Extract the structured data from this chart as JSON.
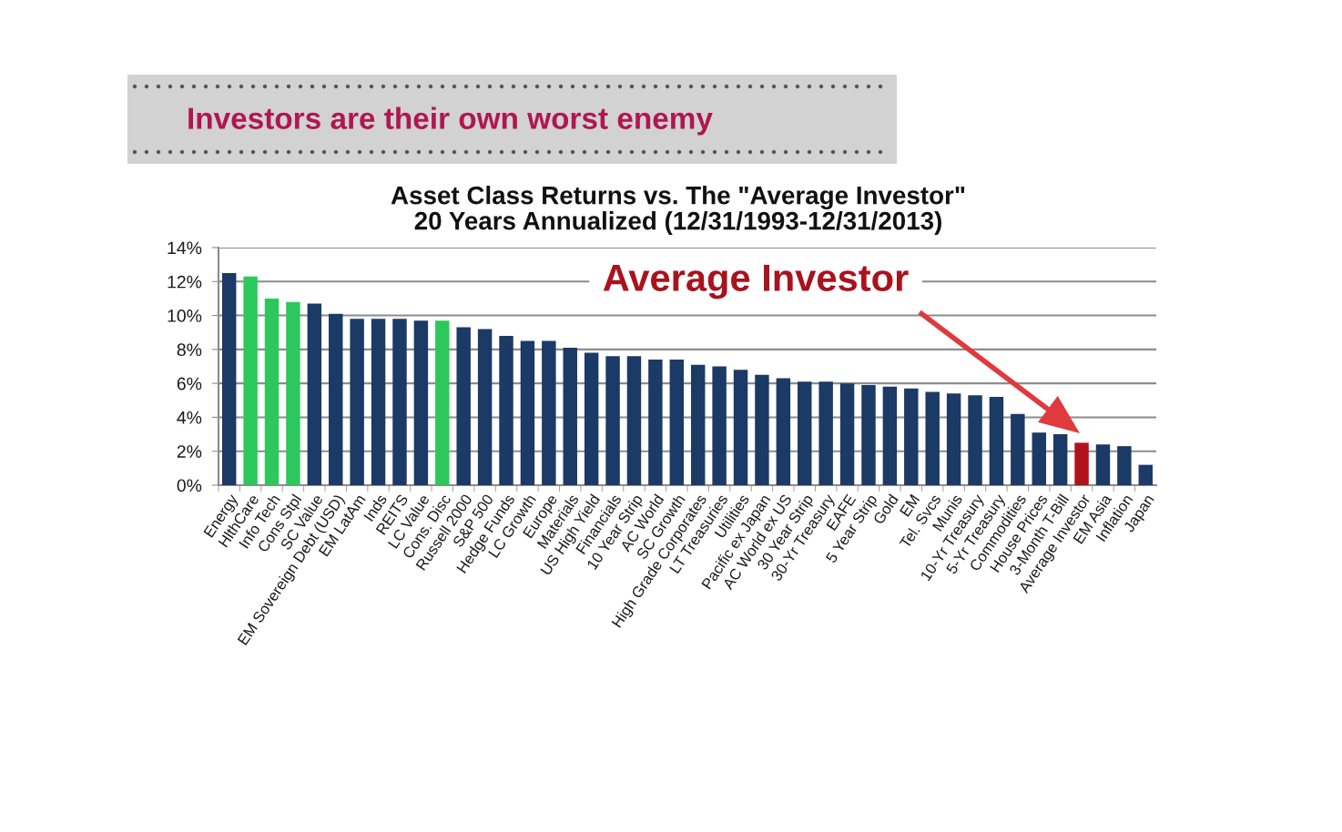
{
  "chart_data": {
    "type": "bar",
    "title": "Investors are their own worst enemy",
    "subtitle": "Asset Class Returns vs. The \"Average Investor\"\n20 Years Annualized (12/31/1993-12/31/2013)",
    "categories": [
      "Energy",
      "HlthCare",
      "Info Tech",
      "Cons Stpl",
      "SC Value",
      "EM Sovereign Debt (USD)",
      "EM LatAm",
      "Inds",
      "REITS",
      "LC Value",
      "Cons. Disc",
      "Russell 2000",
      "S&P 500",
      "Hedge Funds",
      "LC Growth",
      "Europe",
      "Materials",
      "US High Yield",
      "Financials",
      "10 Year Strip",
      "AC World",
      "SC Growth",
      "High Grade Corporates",
      "LT Treasuries",
      "Utilities",
      "Pacific ex Japan",
      "AC World ex US",
      "30 Year Strip",
      "30-Yr Treasury",
      "EAFE",
      "5 Year Strip",
      "Gold",
      "EM",
      "Tel. Svcs",
      "Munis",
      "10-Yr Treasury",
      "5-Yr Treasury",
      "Commodities",
      "House Prices",
      "3-Month T-Bill",
      "Average Investor",
      "EM Asia",
      "Inflation",
      "Japan"
    ],
    "values": [
      12.5,
      12.3,
      11.0,
      10.8,
      10.7,
      10.1,
      9.8,
      9.8,
      9.8,
      9.7,
      9.7,
      9.3,
      9.2,
      8.8,
      8.5,
      8.5,
      8.1,
      7.8,
      7.6,
      7.6,
      7.4,
      7.4,
      7.1,
      7.0,
      6.8,
      6.5,
      6.3,
      6.1,
      6.1,
      6.0,
      5.9,
      5.8,
      5.7,
      5.5,
      5.4,
      5.3,
      5.2,
      4.2,
      3.1,
      3.0,
      2.5,
      2.4,
      2.3,
      1.2
    ],
    "colors": [
      "#1b3a66",
      "#2dc85c",
      "#2dc85c",
      "#2dc85c",
      "#1b3a66",
      "#1b3a66",
      "#1b3a66",
      "#1b3a66",
      "#1b3a66",
      "#1b3a66",
      "#2dc85c",
      "#1b3a66",
      "#1b3a66",
      "#1b3a66",
      "#1b3a66",
      "#1b3a66",
      "#1b3a66",
      "#1b3a66",
      "#1b3a66",
      "#1b3a66",
      "#1b3a66",
      "#1b3a66",
      "#1b3a66",
      "#1b3a66",
      "#1b3a66",
      "#1b3a66",
      "#1b3a66",
      "#1b3a66",
      "#1b3a66",
      "#1b3a66",
      "#1b3a66",
      "#1b3a66",
      "#1b3a66",
      "#1b3a66",
      "#1b3a66",
      "#1b3a66",
      "#1b3a66",
      "#1b3a66",
      "#1b3a66",
      "#1b3a66",
      "#b0121b",
      "#1b3a66",
      "#1b3a66",
      "#1b3a66"
    ],
    "ylim": [
      0,
      14
    ],
    "yticks": [
      {
        "value": 0,
        "label": "0%"
      },
      {
        "value": 2,
        "label": "2%"
      },
      {
        "value": 4,
        "label": "4%"
      },
      {
        "value": 6,
        "label": "6%"
      },
      {
        "value": 8,
        "label": "8%"
      },
      {
        "value": 10,
        "label": "10%"
      },
      {
        "value": 12,
        "label": "12%"
      },
      {
        "value": 14,
        "label": "14%"
      }
    ],
    "grid": "y",
    "annotations": [
      "Average Investor"
    ]
  }
}
